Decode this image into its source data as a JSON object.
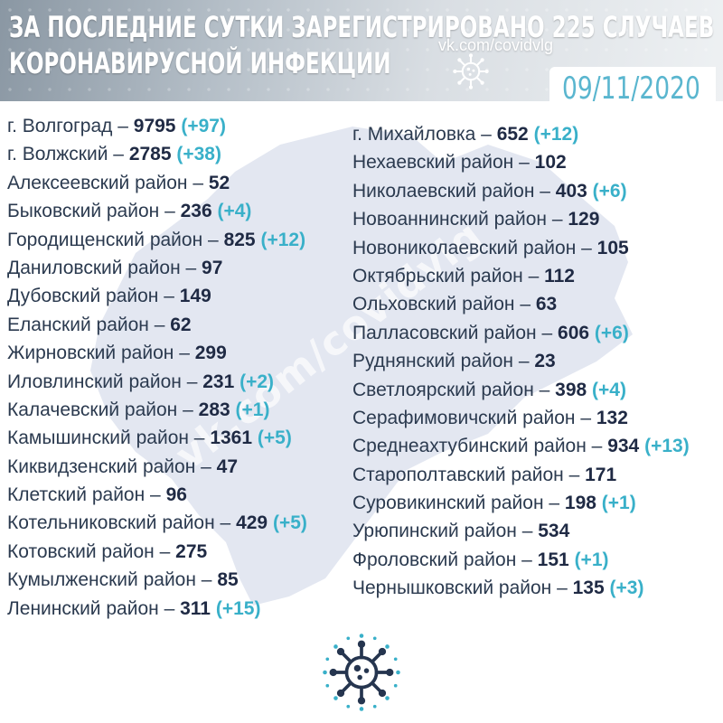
{
  "header": {
    "line1": "ЗА ПОСЛЕДНИЕ СУТКИ ЗАРЕГИСТРИРОВАНО 225 СЛУЧАЕВ",
    "line2": "КОРОНАВИРУСНОЙ ИНФЕКЦИИ",
    "link": "vk.com/covidvlg",
    "date": "09/11/2020",
    "logo_icon": "virus-icon"
  },
  "watermark": "vk.com/covidvlg",
  "colors": {
    "accent": "#39b0c9",
    "text": "#2b3a4f",
    "map": "#e3e7f1"
  },
  "left_column": [
    {
      "name": "г. Волгоград",
      "total": "9795",
      "inc": "(+97)"
    },
    {
      "name": "г. Волжский",
      "total": "2785",
      "inc": "(+38)"
    },
    {
      "name": "Алексеевский район",
      "total": "52",
      "inc": ""
    },
    {
      "name": "Быковский район",
      "total": "236",
      "inc": "(+4)"
    },
    {
      "name": "Городищенский район",
      "total": "825",
      "inc": "(+12)"
    },
    {
      "name": "Даниловский район",
      "total": "97",
      "inc": ""
    },
    {
      "name": "Дубовский район",
      "total": "149",
      "inc": ""
    },
    {
      "name": "Еланский район",
      "total": "62",
      "inc": ""
    },
    {
      "name": "Жирновский район",
      "total": "299",
      "inc": ""
    },
    {
      "name": "Иловлинский район",
      "total": "231",
      "inc": "(+2)"
    },
    {
      "name": "Калачевский район",
      "total": "283",
      "inc": "(+1)"
    },
    {
      "name": "Камышинский район",
      "total": "1361",
      "inc": "(+5)"
    },
    {
      "name": "Киквидзенский район",
      "total": "47",
      "inc": ""
    },
    {
      "name": "Клетский район",
      "total": "96",
      "inc": ""
    },
    {
      "name": "Котельниковский район",
      "total": "429",
      "inc": "(+5)"
    },
    {
      "name": "Котовский район",
      "total": "275",
      "inc": ""
    },
    {
      "name": "Кумылженский район",
      "total": "85",
      "inc": ""
    },
    {
      "name": "Ленинский район",
      "total": "311",
      "inc": "(+15)"
    }
  ],
  "right_column": [
    {
      "name": "г. Михайловка",
      "total": "652",
      "inc": "(+12)"
    },
    {
      "name": "Нехаевский район",
      "total": "102",
      "inc": ""
    },
    {
      "name": "Николаевский район",
      "total": "403",
      "inc": "(+6)"
    },
    {
      "name": "Новоаннинский район",
      "total": "129",
      "inc": ""
    },
    {
      "name": "Новониколаевский район",
      "total": "105",
      "inc": ""
    },
    {
      "name": "Октябрьский район",
      "total": "112",
      "inc": ""
    },
    {
      "name": "Ольховский район",
      "total": "63",
      "inc": ""
    },
    {
      "name": "Палласовский район",
      "total": "606",
      "inc": "(+6)"
    },
    {
      "name": "Руднянский район",
      "total": "23",
      "inc": ""
    },
    {
      "name": "Светлоярский район",
      "total": "398",
      "inc": "(+4)"
    },
    {
      "name": "Серафимовичский район",
      "total": "132",
      "inc": ""
    },
    {
      "name": "Среднеахтубинский район",
      "total": "934",
      "inc": "(+13)"
    },
    {
      "name": "Старополтавский район",
      "total": "171",
      "inc": ""
    },
    {
      "name": "Суровикинский район",
      "total": "198",
      "inc": "(+1)"
    },
    {
      "name": "Урюпинский район",
      "total": "534",
      "inc": ""
    },
    {
      "name": "Фроловский район",
      "total": "151",
      "inc": "(+1)"
    },
    {
      "name": "Чернышковский район",
      "total": "135",
      "inc": "(+3)"
    }
  ],
  "footer": {
    "logo_icon": "virus-icon"
  }
}
